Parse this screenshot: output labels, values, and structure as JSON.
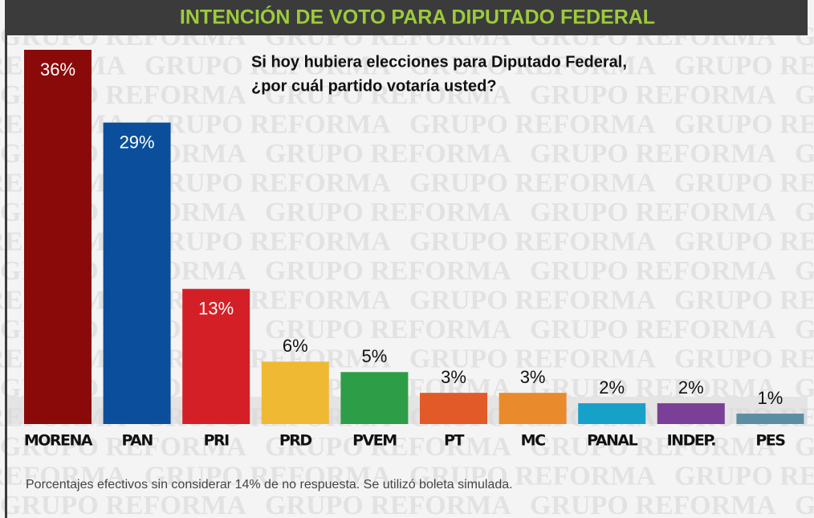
{
  "chart_data": {
    "type": "bar",
    "title": "INTENCIÓN DE VOTO PARA DIPUTADO FEDERAL",
    "question": [
      "Si hoy hubiera elecciones para Diputado Federal,",
      "¿por cuál partido votaría usted?"
    ],
    "footnote": "Porcentajes efectivos sin considerar 14% de no respuesta. Se utilizó boleta simulada.",
    "watermark": "GRUPO REFORMA",
    "categories": [
      "MORENA",
      "PAN",
      "PRI",
      "PRD",
      "PVEM",
      "PT",
      "MC",
      "PANAL",
      "INDEP.",
      "PES"
    ],
    "values": [
      36,
      29,
      13,
      6,
      5,
      3,
      3,
      2,
      2,
      1
    ],
    "value_labels": [
      "36%",
      "29%",
      "13%",
      "6%",
      "5%",
      "3%",
      "3%",
      "2%",
      "2%",
      "1%"
    ],
    "colors": [
      "#8a0a0a",
      "#0b4f9c",
      "#d51f27",
      "#efb934",
      "#2e9d47",
      "#e15a27",
      "#e98b2c",
      "#17a0c8",
      "#7a3f96",
      "#5b8ea2"
    ],
    "ylim": [
      0,
      36
    ]
  }
}
